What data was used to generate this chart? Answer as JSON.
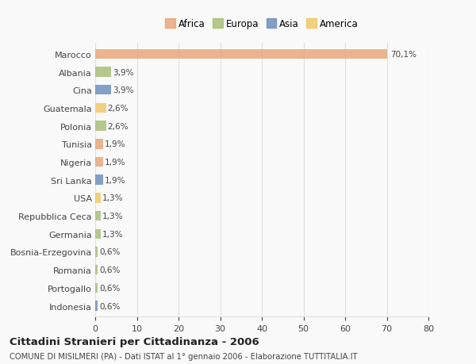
{
  "countries": [
    "Marocco",
    "Albania",
    "Cina",
    "Guatemala",
    "Polonia",
    "Tunisia",
    "Nigeria",
    "Sri Lanka",
    "USA",
    "Repubblica Ceca",
    "Germania",
    "Bosnia-Erzegovina",
    "Romania",
    "Portogallo",
    "Indonesia"
  ],
  "values": [
    70.1,
    3.9,
    3.9,
    2.6,
    2.6,
    1.9,
    1.9,
    1.9,
    1.3,
    1.3,
    1.3,
    0.6,
    0.6,
    0.6,
    0.6
  ],
  "labels": [
    "70,1%",
    "3,9%",
    "3,9%",
    "2,6%",
    "2,6%",
    "1,9%",
    "1,9%",
    "1,9%",
    "1,3%",
    "1,3%",
    "1,3%",
    "0,6%",
    "0,6%",
    "0,6%",
    "0,6%"
  ],
  "continents": [
    "Africa",
    "Europa",
    "Asia",
    "America",
    "Europa",
    "Africa",
    "Africa",
    "Asia",
    "America",
    "Europa",
    "Europa",
    "Europa",
    "Europa",
    "Europa",
    "Asia"
  ],
  "colors": {
    "Africa": "#E8A87C",
    "Europa": "#A8C07A",
    "Asia": "#7090BE",
    "America": "#F0C86A"
  },
  "xlim": [
    0,
    80
  ],
  "xticks": [
    0,
    10,
    20,
    30,
    40,
    50,
    60,
    70,
    80
  ],
  "title": "Cittadini Stranieri per Cittadinanza - 2006",
  "subtitle": "COMUNE DI MISILMERI (PA) - Dati ISTAT al 1° gennaio 2006 - Elaborazione TUTTITALIA.IT",
  "background_color": "#f9f9f9",
  "bar_height": 0.55,
  "grid_color": "#e0e0e0",
  "text_color": "#444444"
}
